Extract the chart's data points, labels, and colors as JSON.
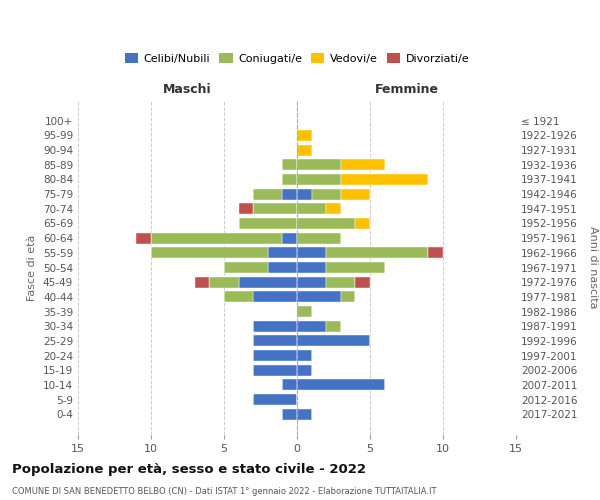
{
  "age_groups": [
    "100+",
    "95-99",
    "90-94",
    "85-89",
    "80-84",
    "75-79",
    "70-74",
    "65-69",
    "60-64",
    "55-59",
    "50-54",
    "45-49",
    "40-44",
    "35-39",
    "30-34",
    "25-29",
    "20-24",
    "15-19",
    "10-14",
    "5-9",
    "0-4"
  ],
  "birth_years": [
    "≤ 1921",
    "1922-1926",
    "1927-1931",
    "1932-1936",
    "1937-1941",
    "1942-1946",
    "1947-1951",
    "1952-1956",
    "1957-1961",
    "1962-1966",
    "1967-1971",
    "1972-1976",
    "1977-1981",
    "1982-1986",
    "1987-1991",
    "1992-1996",
    "1997-2001",
    "2002-2006",
    "2007-2011",
    "2012-2016",
    "2017-2021"
  ],
  "male": {
    "celibi": [
      0,
      0,
      0,
      0,
      0,
      1,
      0,
      0,
      1,
      2,
      2,
      4,
      3,
      0,
      3,
      3,
      3,
      3,
      1,
      3,
      1
    ],
    "coniugati": [
      0,
      0,
      0,
      1,
      1,
      2,
      3,
      4,
      9,
      8,
      3,
      2,
      2,
      0,
      0,
      0,
      0,
      0,
      0,
      0,
      0
    ],
    "vedovi": [
      0,
      0,
      0,
      0,
      0,
      0,
      0,
      0,
      0,
      0,
      0,
      0,
      0,
      0,
      0,
      0,
      0,
      0,
      0,
      0,
      0
    ],
    "divorziati": [
      0,
      0,
      0,
      0,
      0,
      0,
      1,
      0,
      1,
      0,
      0,
      1,
      0,
      0,
      0,
      0,
      0,
      0,
      0,
      0,
      0
    ]
  },
  "female": {
    "nubili": [
      0,
      0,
      0,
      0,
      0,
      1,
      0,
      0,
      0,
      2,
      2,
      2,
      3,
      0,
      2,
      5,
      1,
      1,
      6,
      0,
      1
    ],
    "coniugate": [
      0,
      0,
      0,
      3,
      3,
      2,
      2,
      4,
      3,
      7,
      4,
      2,
      1,
      1,
      1,
      0,
      0,
      0,
      0,
      0,
      0
    ],
    "vedove": [
      0,
      1,
      1,
      3,
      6,
      2,
      1,
      1,
      0,
      0,
      0,
      0,
      0,
      0,
      0,
      0,
      0,
      0,
      0,
      0,
      0
    ],
    "divorziate": [
      0,
      0,
      0,
      0,
      0,
      0,
      0,
      0,
      0,
      1,
      0,
      1,
      0,
      0,
      0,
      0,
      0,
      0,
      0,
      0,
      0
    ]
  },
  "colors": {
    "celibi": "#4472c4",
    "coniugati": "#9bbb59",
    "vedovi": "#ffc000",
    "divorziati": "#c0504d"
  },
  "title": "Popolazione per età, sesso e stato civile - 2022",
  "subtitle": "COMUNE DI SAN BENEDETTO BELBO (CN) - Dati ISTAT 1° gennaio 2022 - Elaborazione TUTTAITALIA.IT",
  "xlabel_left": "Maschi",
  "xlabel_right": "Femmine",
  "ylabel_left": "Fasce di età",
  "ylabel_right": "Anni di nascita",
  "xlim": 15,
  "background_color": "#ffffff",
  "grid_color": "#cccccc"
}
